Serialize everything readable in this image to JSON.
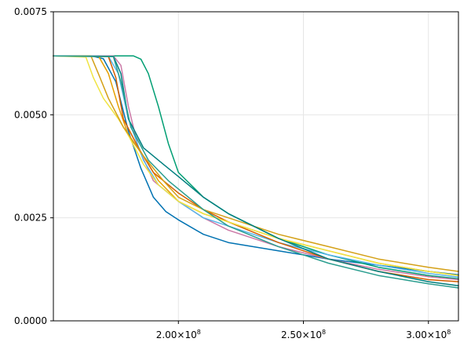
{
  "chart_data": {
    "type": "line",
    "title": "",
    "xlabel": "",
    "ylabel": "",
    "xlim": [
      150000000,
      312000000
    ],
    "ylim": [
      0,
      0.0075
    ],
    "grid": true,
    "x_ticks": [
      {
        "value": 200000000,
        "mantissa": "2.00×10",
        "exp": "8"
      },
      {
        "value": 250000000,
        "mantissa": "2.50×10",
        "exp": "8"
      },
      {
        "value": 300000000,
        "mantissa": "3.00×10",
        "exp": "8"
      }
    ],
    "y_ticks": [
      {
        "value": 0,
        "label": "0.0000"
      },
      {
        "value": 0.0025,
        "label": "0.0025"
      },
      {
        "value": 0.005,
        "label": "0.0050"
      },
      {
        "value": 0.0075,
        "label": "0.0075"
      }
    ],
    "series": [
      {
        "color": "#0072b2",
        "points": [
          [
            150000000,
            0.00643
          ],
          [
            165000000,
            0.00643
          ],
          [
            170000000,
            0.00636
          ],
          [
            175000000,
            0.0058
          ],
          [
            180000000,
            0.0046
          ],
          [
            185000000,
            0.0037
          ],
          [
            190000000,
            0.003
          ],
          [
            195000000,
            0.00265
          ],
          [
            200000000,
            0.00245
          ],
          [
            210000000,
            0.0021
          ],
          [
            220000000,
            0.0019
          ],
          [
            240000000,
            0.0017
          ],
          [
            260000000,
            0.0015
          ],
          [
            280000000,
            0.00135
          ],
          [
            300000000,
            0.0012
          ],
          [
            312000000,
            0.00112
          ]
        ]
      },
      {
        "color": "#009e73",
        "points": [
          [
            150000000,
            0.00643
          ],
          [
            182000000,
            0.00643
          ],
          [
            185000000,
            0.00635
          ],
          [
            188000000,
            0.006
          ],
          [
            192000000,
            0.0052
          ],
          [
            196000000,
            0.0043
          ],
          [
            200000000,
            0.0036
          ],
          [
            210000000,
            0.003
          ],
          [
            220000000,
            0.0026
          ],
          [
            240000000,
            0.002
          ],
          [
            260000000,
            0.0016
          ],
          [
            280000000,
            0.0013
          ],
          [
            300000000,
            0.0011
          ],
          [
            312000000,
            0.00102
          ]
        ]
      },
      {
        "color": "#e69f00",
        "points": [
          [
            150000000,
            0.00643
          ],
          [
            168000000,
            0.00643
          ],
          [
            172000000,
            0.006
          ],
          [
            176000000,
            0.0052
          ],
          [
            180000000,
            0.0045
          ],
          [
            186000000,
            0.004
          ],
          [
            192000000,
            0.0034
          ],
          [
            200000000,
            0.0029
          ],
          [
            210000000,
            0.0026
          ],
          [
            220000000,
            0.0024
          ],
          [
            240000000,
            0.002
          ],
          [
            260000000,
            0.0017
          ],
          [
            280000000,
            0.0014
          ],
          [
            300000000,
            0.0012
          ],
          [
            312000000,
            0.0011
          ]
        ]
      },
      {
        "color": "#cc79a7",
        "points": [
          [
            150000000,
            0.00643
          ],
          [
            174000000,
            0.00643
          ],
          [
            177000000,
            0.0062
          ],
          [
            180000000,
            0.0052
          ],
          [
            184000000,
            0.0042
          ],
          [
            190000000,
            0.0034
          ],
          [
            200000000,
            0.0029
          ],
          [
            210000000,
            0.0025
          ],
          [
            220000000,
            0.0022
          ],
          [
            240000000,
            0.0018
          ],
          [
            260000000,
            0.0015
          ],
          [
            280000000,
            0.00125
          ],
          [
            300000000,
            0.00107
          ],
          [
            312000000,
            0.001
          ]
        ]
      },
      {
        "color": "#56b4e9",
        "points": [
          [
            150000000,
            0.00643
          ],
          [
            172000000,
            0.00642
          ],
          [
            176000000,
            0.006
          ],
          [
            180000000,
            0.0049
          ],
          [
            186000000,
            0.0039
          ],
          [
            192000000,
            0.0033
          ],
          [
            200000000,
            0.0029
          ],
          [
            210000000,
            0.0025
          ],
          [
            220000000,
            0.0023
          ],
          [
            240000000,
            0.0019
          ],
          [
            260000000,
            0.0016
          ],
          [
            280000000,
            0.00135
          ],
          [
            300000000,
            0.00115
          ],
          [
            312000000,
            0.00106
          ]
        ]
      },
      {
        "color": "#d55e00",
        "points": [
          [
            150000000,
            0.00643
          ],
          [
            172000000,
            0.00641
          ],
          [
            175000000,
            0.0059
          ],
          [
            178000000,
            0.0049
          ],
          [
            184000000,
            0.0042
          ],
          [
            190000000,
            0.0036
          ],
          [
            200000000,
            0.0031
          ],
          [
            210000000,
            0.0027
          ],
          [
            220000000,
            0.0024
          ],
          [
            240000000,
            0.0019
          ],
          [
            260000000,
            0.0015
          ],
          [
            280000000,
            0.0012
          ],
          [
            300000000,
            0.001
          ],
          [
            312000000,
            0.00095
          ]
        ]
      },
      {
        "color": "#f0e442",
        "points": [
          [
            150000000,
            0.00643
          ],
          [
            163000000,
            0.0064
          ],
          [
            166000000,
            0.0059
          ],
          [
            170000000,
            0.0054
          ],
          [
            176000000,
            0.0049
          ],
          [
            180000000,
            0.0045
          ],
          [
            186000000,
            0.0038
          ],
          [
            192000000,
            0.0033
          ],
          [
            200000000,
            0.0029
          ],
          [
            210000000,
            0.0026
          ],
          [
            220000000,
            0.0024
          ],
          [
            240000000,
            0.002
          ],
          [
            260000000,
            0.0017
          ],
          [
            280000000,
            0.0014
          ],
          [
            300000000,
            0.0012
          ],
          [
            312000000,
            0.0011
          ]
        ]
      },
      {
        "color": "#d4a017",
        "points": [
          [
            150000000,
            0.00643
          ],
          [
            165000000,
            0.00643
          ],
          [
            168000000,
            0.006
          ],
          [
            172000000,
            0.0054
          ],
          [
            178000000,
            0.0047
          ],
          [
            186000000,
            0.004
          ],
          [
            194000000,
            0.0034
          ],
          [
            200000000,
            0.003
          ],
          [
            210000000,
            0.0027
          ],
          [
            220000000,
            0.0025
          ],
          [
            240000000,
            0.0021
          ],
          [
            260000000,
            0.0018
          ],
          [
            280000000,
            0.0015
          ],
          [
            300000000,
            0.0013
          ],
          [
            312000000,
            0.0012
          ]
        ]
      },
      {
        "color": "#007f7f",
        "points": [
          [
            150000000,
            0.00643
          ],
          [
            174000000,
            0.00642
          ],
          [
            177000000,
            0.006
          ],
          [
            180000000,
            0.0049
          ],
          [
            186000000,
            0.0042
          ],
          [
            194000000,
            0.0038
          ],
          [
            200000000,
            0.0035
          ],
          [
            210000000,
            0.003
          ],
          [
            220000000,
            0.0026
          ],
          [
            240000000,
            0.002
          ],
          [
            260000000,
            0.0015
          ],
          [
            280000000,
            0.0012
          ],
          [
            300000000,
            0.00095
          ],
          [
            312000000,
            0.00085
          ]
        ]
      },
      {
        "color": "#2a9d8f",
        "points": [
          [
            150000000,
            0.00643
          ],
          [
            174000000,
            0.00641
          ],
          [
            177000000,
            0.0058
          ],
          [
            181000000,
            0.0047
          ],
          [
            188000000,
            0.0039
          ],
          [
            196000000,
            0.0034
          ],
          [
            200000000,
            0.0032
          ],
          [
            210000000,
            0.0027
          ],
          [
            220000000,
            0.0023
          ],
          [
            240000000,
            0.0018
          ],
          [
            260000000,
            0.0014
          ],
          [
            280000000,
            0.0011
          ],
          [
            300000000,
            0.0009
          ],
          [
            312000000,
            0.0008
          ]
        ]
      }
    ]
  }
}
